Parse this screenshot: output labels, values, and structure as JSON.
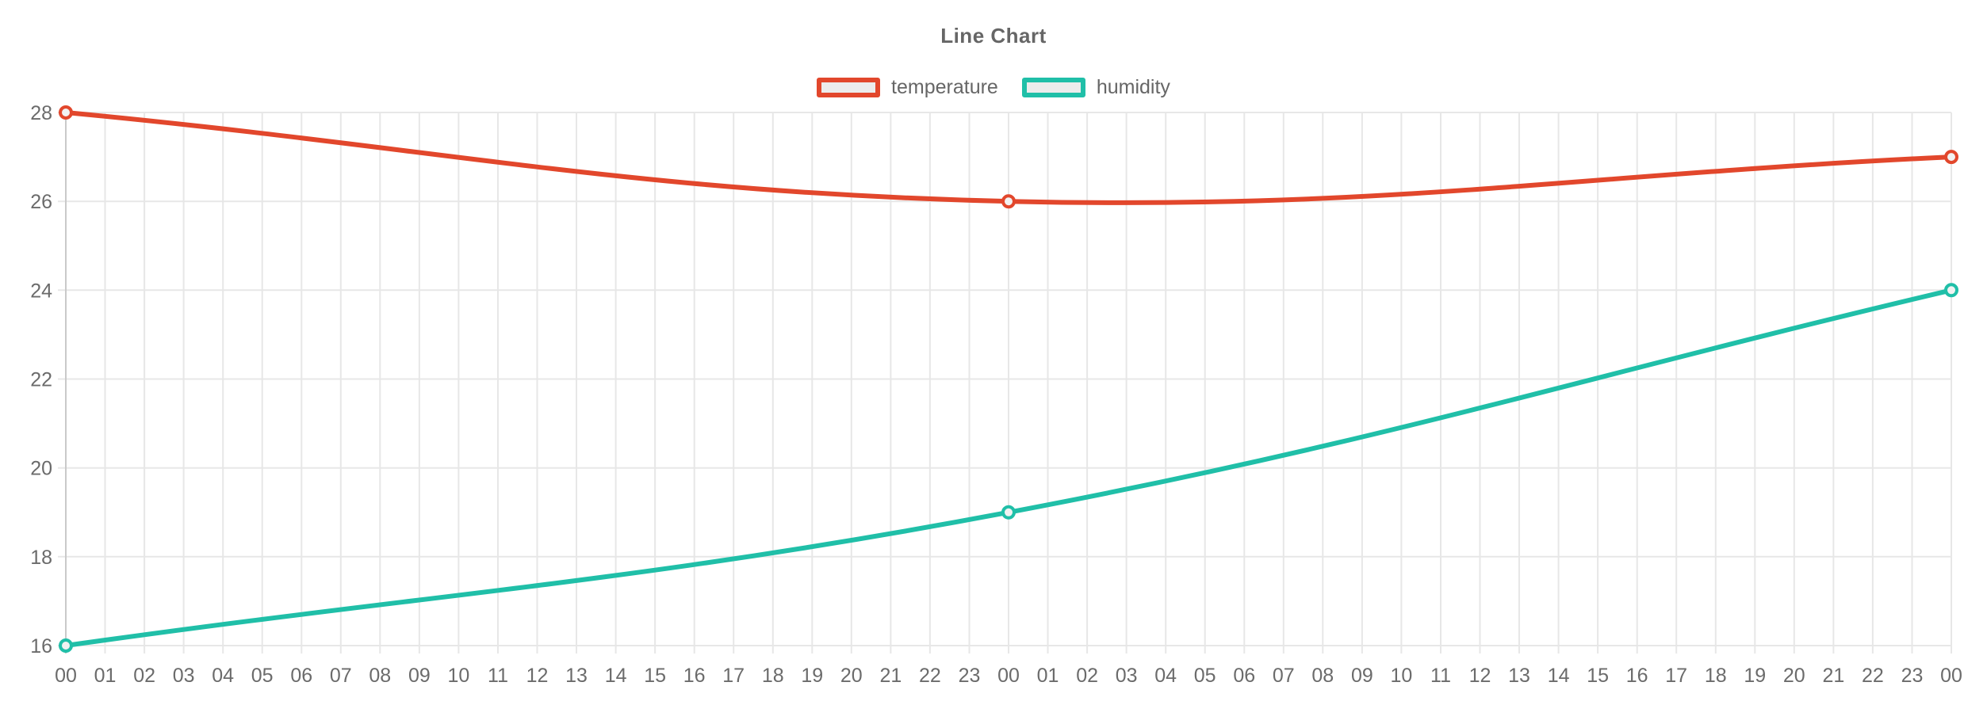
{
  "chart_data": {
    "type": "line",
    "title": "Line Chart",
    "x_labels": [
      "00",
      "01",
      "02",
      "03",
      "04",
      "05",
      "06",
      "07",
      "08",
      "09",
      "10",
      "11",
      "12",
      "13",
      "14",
      "15",
      "16",
      "17",
      "18",
      "19",
      "20",
      "21",
      "22",
      "23",
      "00",
      "01",
      "02",
      "03",
      "04",
      "05",
      "06",
      "07",
      "08",
      "09",
      "10",
      "11",
      "12",
      "13",
      "14",
      "15",
      "16",
      "17",
      "18",
      "19",
      "20",
      "21",
      "22",
      "23",
      "00"
    ],
    "y_ticks": [
      16,
      18,
      20,
      22,
      24,
      26,
      28
    ],
    "ylim": [
      16,
      28
    ],
    "grid": true,
    "legend_position": "top",
    "series": [
      {
        "name": "temperature",
        "color": "#e2472c",
        "points": [
          {
            "x_index": 0,
            "value": 28
          },
          {
            "x_index": 24,
            "value": 26
          },
          {
            "x_index": 48,
            "value": 27
          }
        ]
      },
      {
        "name": "humidity",
        "color": "#20bfa8",
        "points": [
          {
            "x_index": 0,
            "value": 16
          },
          {
            "x_index": 24,
            "value": 19
          },
          {
            "x_index": 48,
            "value": 24
          }
        ]
      }
    ]
  },
  "colors": {
    "background": "#ffffff",
    "grid": "#e7e7e7",
    "grid_first": "#c9c9c9",
    "axis_text": "#6b6b6b",
    "title_text": "#666666",
    "legend_text": "#666666",
    "legend_fill": "#ececec",
    "point_fill": "#f2f2f2"
  }
}
